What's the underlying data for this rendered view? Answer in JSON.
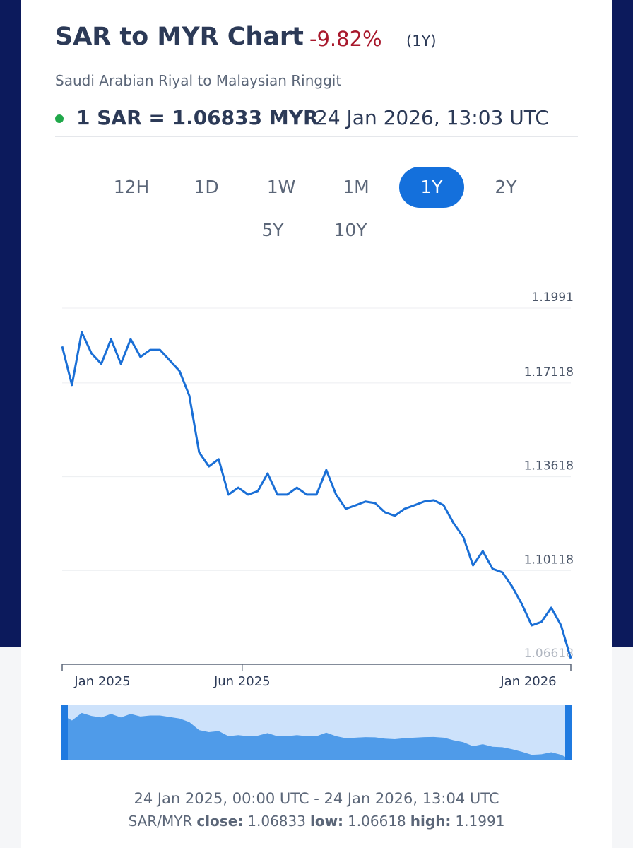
{
  "header": {
    "title": "SAR to MYR Chart",
    "change": "-9.82%",
    "period": "(1Y)",
    "subtitle": "Saudi Arabian Riyal to Malaysian Ringgit",
    "rate": "1 SAR = 1.06833 MYR",
    "timestamp": "24 Jan 2026, 13:03 UTC"
  },
  "ranges": [
    {
      "label": "12H"
    },
    {
      "label": "1D"
    },
    {
      "label": "1W"
    },
    {
      "label": "1M"
    },
    {
      "label": "1Y",
      "active": true
    },
    {
      "label": "2Y"
    },
    {
      "label": "5Y"
    },
    {
      "label": "10Y"
    }
  ],
  "chart_data": {
    "type": "line",
    "color": "#1a6fd6",
    "grid": true,
    "values": [
      1.1848,
      1.1704,
      1.1901,
      1.1822,
      1.1783,
      1.1875,
      1.1783,
      1.1875,
      1.1809,
      1.1835,
      1.1835,
      1.1796,
      1.1756,
      1.1664,
      1.1453,
      1.14,
      1.1427,
      1.1295,
      1.1321,
      1.1295,
      1.1308,
      1.1374,
      1.1295,
      1.1295,
      1.1321,
      1.1295,
      1.1295,
      1.1387,
      1.1295,
      1.1242,
      1.1255,
      1.1269,
      1.1263,
      1.1229,
      1.1216,
      1.1242,
      1.1255,
      1.1269,
      1.1274,
      1.1255,
      1.1189,
      1.1137,
      1.1031,
      1.1084,
      1.1018,
      1.1005,
      1.0952,
      1.0886,
      1.0807,
      1.082,
      1.0873,
      1.0807,
      1.06833
    ],
    "ylim": [
      1.06618,
      1.1991
    ],
    "yticks": [
      1.06618,
      1.10118,
      1.13618,
      1.17118,
      1.1991
    ],
    "xlim": [
      0,
      52
    ],
    "xticks": [
      {
        "value": 0,
        "label": "Jan 2025"
      },
      {
        "value": 18.4,
        "label": "Jun 2025"
      },
      {
        "value": 52,
        "label": "Jan 2026"
      }
    ]
  },
  "footer": {
    "range": "24 Jan 2025, 00:00 UTC - 24 Jan 2026, 13:04 UTC",
    "pair": "SAR/MYR",
    "items": [
      {
        "label": "close:",
        "value": "1.06833"
      },
      {
        "label": "low:",
        "value": "1.06618"
      },
      {
        "label": "high:",
        "value": "1.1991"
      }
    ]
  }
}
